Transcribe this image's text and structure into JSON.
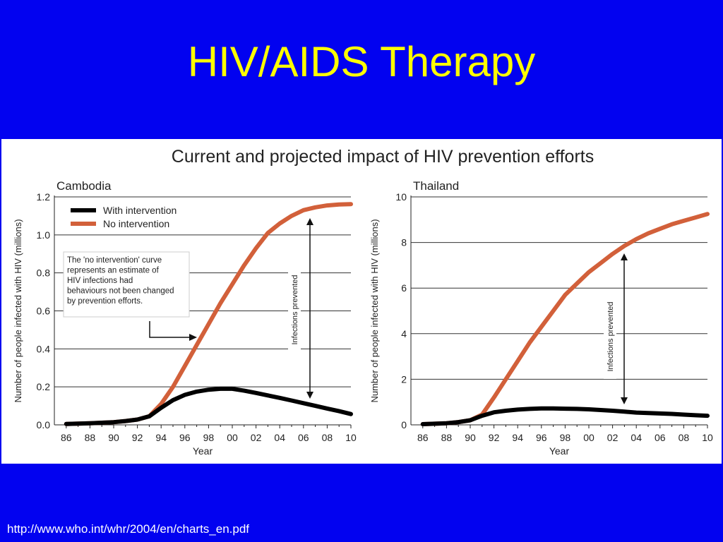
{
  "slide": {
    "title": "HIV/AIDS Therapy",
    "source": "http://www.who.int/whr/2004/en/charts_en.pdf"
  },
  "figure": {
    "title": "Current and projected impact of HIV prevention efforts"
  },
  "colors": {
    "background": "#0202f0",
    "title": "#ffff00",
    "with_intervention": "#000000",
    "no_intervention": "#d2603a",
    "grid": "#333333"
  },
  "chart_data": [
    {
      "type": "line",
      "title": "Cambodia",
      "xlabel": "Year",
      "ylabel": "Number of people infected with HIV (millions)",
      "x_ticks": [
        "86",
        "88",
        "90",
        "92",
        "94",
        "96",
        "98",
        "00",
        "02",
        "04",
        "06",
        "08",
        "10"
      ],
      "y_ticks": [
        "0.0",
        "0.2",
        "0.4",
        "0.6",
        "0.8",
        "1.0",
        "1.2"
      ],
      "xlim": [
        1985,
        2010
      ],
      "ylim": [
        0,
        1.2
      ],
      "grid": "horizontal",
      "legend": "top-left",
      "series": [
        {
          "name": "With intervention",
          "color": "#000000",
          "x": [
            1986,
            1988,
            1990,
            1991,
            1992,
            1993,
            1994,
            1995,
            1996,
            1997,
            1998,
            1999,
            2000,
            2001,
            2002,
            2003,
            2004,
            2005,
            2006,
            2007,
            2008,
            2009,
            2010
          ],
          "y": [
            0.005,
            0.008,
            0.014,
            0.02,
            0.028,
            0.045,
            0.09,
            0.13,
            0.158,
            0.175,
            0.185,
            0.19,
            0.19,
            0.18,
            0.168,
            0.155,
            0.142,
            0.128,
            0.114,
            0.1,
            0.086,
            0.072,
            0.057
          ]
        },
        {
          "name": "No intervention",
          "color": "#d2603a",
          "x": [
            1986,
            1988,
            1990,
            1991,
            1992,
            1993,
            1994,
            1995,
            1996,
            1997,
            1998,
            1999,
            2000,
            2001,
            2002,
            2003,
            2004,
            2005,
            2006,
            2007,
            2008,
            2009,
            2010
          ],
          "y": [
            0.005,
            0.008,
            0.014,
            0.02,
            0.028,
            0.045,
            0.11,
            0.2,
            0.31,
            0.42,
            0.53,
            0.64,
            0.74,
            0.84,
            0.93,
            1.01,
            1.06,
            1.1,
            1.13,
            1.145,
            1.155,
            1.16,
            1.162
          ]
        }
      ],
      "annotations": {
        "note": "The 'no intervention' curve represents an estimate of HIV infections had behaviours not been changed by prevention efforts.",
        "arrow_label": "Infections prevented"
      }
    },
    {
      "type": "line",
      "title": "Thailand",
      "xlabel": "Year",
      "ylabel": "Number of people infected with HIV (millions)",
      "x_ticks": [
        "86",
        "88",
        "90",
        "92",
        "94",
        "96",
        "98",
        "00",
        "02",
        "04",
        "06",
        "08",
        "10"
      ],
      "y_ticks": [
        "0",
        "2",
        "4",
        "6",
        "8",
        "10"
      ],
      "xlim": [
        1985,
        2010
      ],
      "ylim": [
        0,
        10
      ],
      "grid": "horizontal",
      "series": [
        {
          "name": "With intervention",
          "color": "#000000",
          "x": [
            1986,
            1988,
            1989,
            1990,
            1991,
            1992,
            1993,
            1994,
            1995,
            1996,
            1997,
            1998,
            1999,
            2000,
            2001,
            2002,
            2003,
            2004,
            2005,
            2006,
            2007,
            2008,
            2009,
            2010
          ],
          "y": [
            0.03,
            0.07,
            0.12,
            0.2,
            0.4,
            0.55,
            0.62,
            0.67,
            0.7,
            0.72,
            0.72,
            0.71,
            0.7,
            0.68,
            0.65,
            0.62,
            0.58,
            0.54,
            0.52,
            0.5,
            0.48,
            0.45,
            0.42,
            0.4
          ]
        },
        {
          "name": "No intervention",
          "color": "#d2603a",
          "x": [
            1986,
            1988,
            1989,
            1990,
            1991,
            1992,
            1993,
            1994,
            1995,
            1996,
            1997,
            1998,
            1999,
            2000,
            2001,
            2002,
            2003,
            2004,
            2005,
            2006,
            2007,
            2008,
            2009,
            2010
          ],
          "y": [
            0.03,
            0.07,
            0.12,
            0.2,
            0.45,
            1.2,
            2.0,
            2.8,
            3.6,
            4.3,
            5.0,
            5.7,
            6.2,
            6.7,
            7.1,
            7.5,
            7.85,
            8.15,
            8.4,
            8.6,
            8.8,
            8.95,
            9.1,
            9.25
          ]
        }
      ],
      "annotations": {
        "arrow_label": "Infections prevented"
      }
    }
  ]
}
